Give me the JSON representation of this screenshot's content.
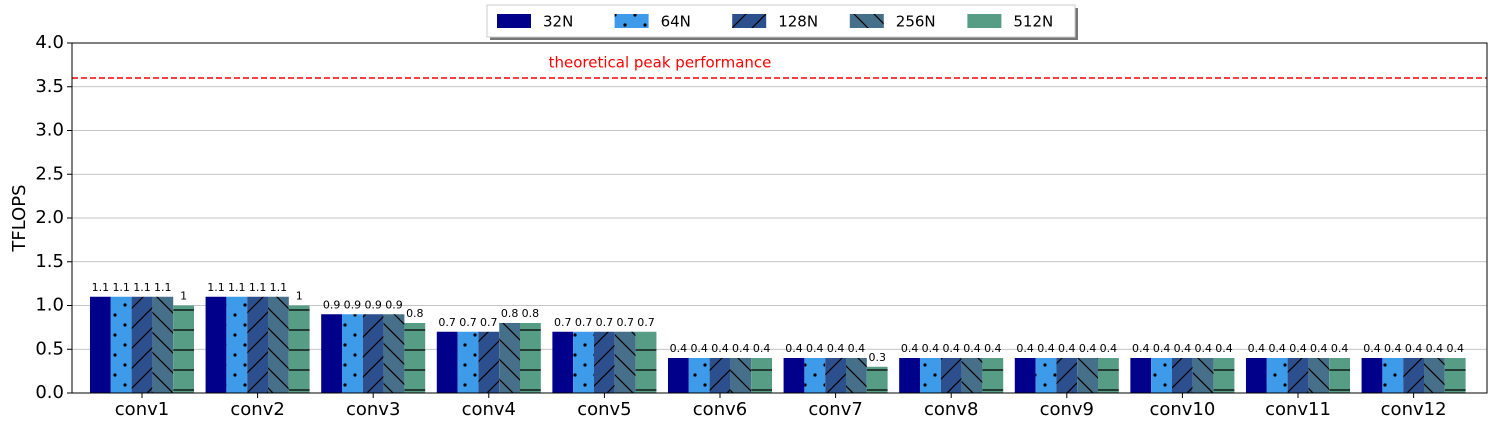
{
  "chart_data": {
    "type": "bar",
    "y_label": "TFLOPS",
    "categories": [
      "conv1",
      "conv2",
      "conv3",
      "conv4",
      "conv5",
      "conv6",
      "conv7",
      "conv8",
      "conv9",
      "conv10",
      "conv11",
      "conv12"
    ],
    "series": [
      {
        "name": "32N",
        "color": "#00008b",
        "hatch": "none",
        "values": [
          1.1,
          1.1,
          0.9,
          0.7,
          0.7,
          0.4,
          0.4,
          0.4,
          0.4,
          0.4,
          0.4,
          0.4
        ]
      },
      {
        "name": "64N",
        "color": "#3d9be9",
        "hatch": "dots",
        "values": [
          1.1,
          1.1,
          0.9,
          0.7,
          0.7,
          0.4,
          0.4,
          0.4,
          0.4,
          0.4,
          0.4,
          0.4
        ]
      },
      {
        "name": "128N",
        "color": "#2c4f8e",
        "hatch": "forward",
        "values": [
          1.1,
          1.1,
          0.9,
          0.7,
          0.7,
          0.4,
          0.4,
          0.4,
          0.4,
          0.4,
          0.4,
          0.4
        ]
      },
      {
        "name": "256N",
        "color": "#467089",
        "hatch": "back",
        "values": [
          1.1,
          1.1,
          0.9,
          0.8,
          0.7,
          0.4,
          0.4,
          0.4,
          0.4,
          0.4,
          0.4,
          0.4
        ]
      },
      {
        "name": "512N",
        "color": "#579d86",
        "hatch": "horizontal",
        "values": [
          1,
          1,
          0.8,
          0.8,
          0.7,
          0.4,
          0.3,
          0.4,
          0.4,
          0.4,
          0.4,
          0.4
        ]
      }
    ],
    "reference_line": {
      "value": 3.6,
      "label": "theoretical peak performance",
      "color": "#ff0000"
    },
    "ylim": [
      0,
      4
    ],
    "yticks": [
      {
        "value": 0,
        "label": "0.0"
      },
      {
        "value": 0.5,
        "label": "0.5"
      },
      {
        "value": 1,
        "label": "1.0"
      },
      {
        "value": 1.5,
        "label": "1.5"
      },
      {
        "value": 2,
        "label": "2.0"
      },
      {
        "value": 2.5,
        "label": "2.5"
      },
      {
        "value": 3,
        "label": "3.0"
      },
      {
        "value": 3.5,
        "label": "3.5"
      },
      {
        "value": 4,
        "label": "4.0"
      }
    ],
    "grid": true,
    "legend": "upper center"
  }
}
